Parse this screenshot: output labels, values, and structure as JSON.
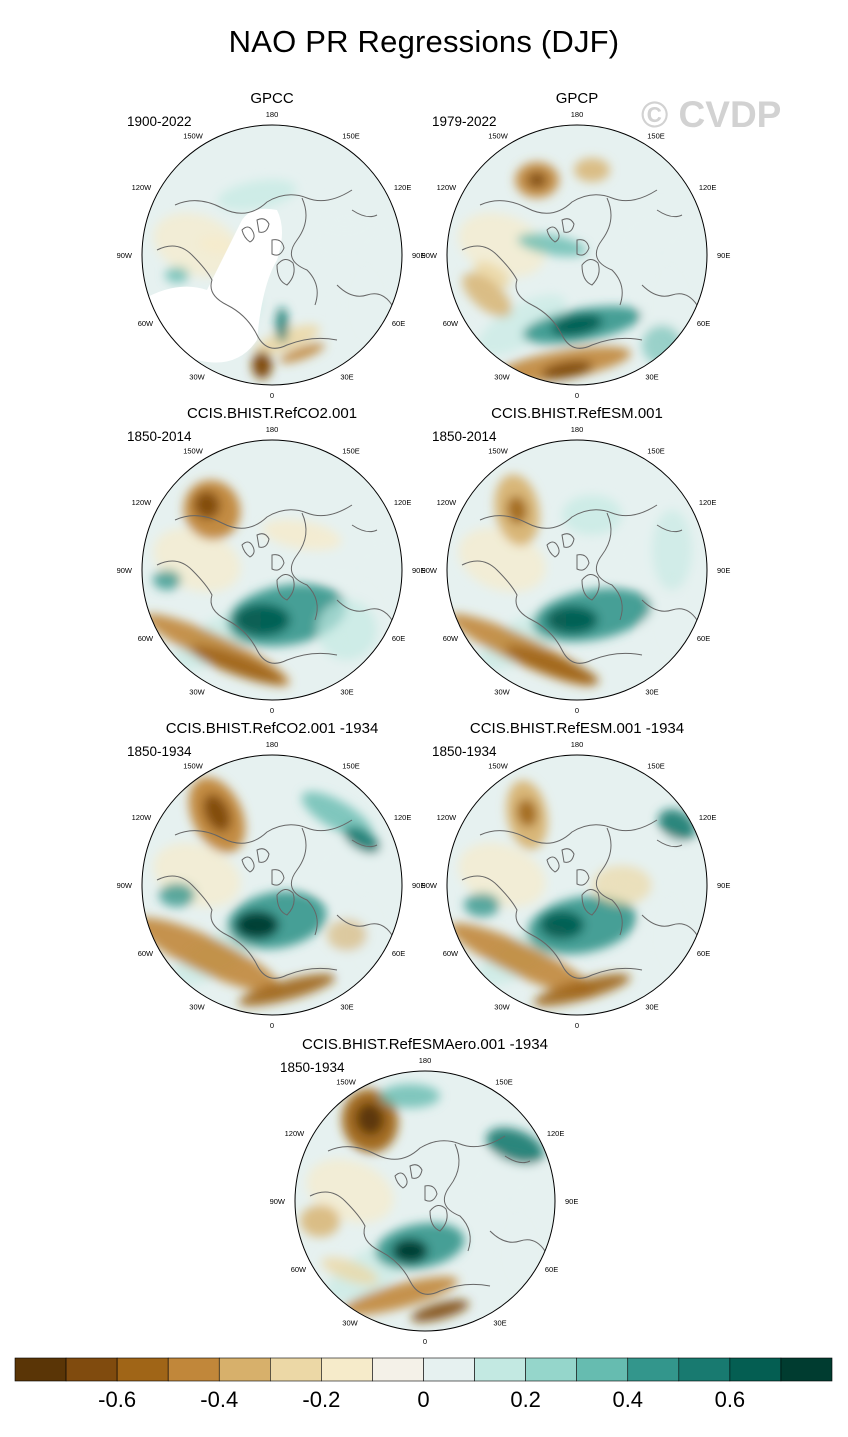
{
  "figure": {
    "title": "NAO PR Regressions (DJF)",
    "watermark": "© CVDP"
  },
  "longitude_labels": {
    "deg180": "180",
    "e150": "150E",
    "e120": "120E",
    "e90": "90E",
    "e60": "60E",
    "e30": "30E",
    "deg0": "0",
    "w30": "30W",
    "w60": "60W",
    "w90": "90W",
    "w120": "120W",
    "w150": "150W"
  },
  "panels": [
    {
      "title": "GPCC",
      "years": "1900-2022",
      "variant": "gpcc"
    },
    {
      "title": "GPCP",
      "years": "1979-2022",
      "variant": "gpcp"
    },
    {
      "title": "CCIS.BHIST.RefCO2.001",
      "years": "1850-2014",
      "variant": "model-a"
    },
    {
      "title": "CCIS.BHIST.RefESM.001",
      "years": "1850-2014",
      "variant": "model-b"
    },
    {
      "title": "CCIS.BHIST.RefCO2.001 -1934",
      "years": "1850-1934",
      "variant": "model-c"
    },
    {
      "title": "CCIS.BHIST.RefESM.001 -1934",
      "years": "1850-1934",
      "variant": "model-d"
    },
    {
      "title": "CCIS.BHIST.RefESMAero.001 -1934",
      "years": "1850-1934",
      "variant": "model-e"
    }
  ],
  "colorbar": {
    "colors": [
      "#5a3506",
      "#804b0e",
      "#a06517",
      "#c1873a",
      "#d7b06b",
      "#ecd8a6",
      "#f6ebca",
      "#f4f1e8",
      "#e6f1f0",
      "#c3e9e2",
      "#95d6cb",
      "#66bcb0",
      "#33968c",
      "#187a70",
      "#045e52",
      "#003c30"
    ],
    "tick_labels": [
      "-0.6",
      "-0.4",
      "-0.2",
      "0",
      "0.2",
      "0.4",
      "0.6"
    ]
  }
}
